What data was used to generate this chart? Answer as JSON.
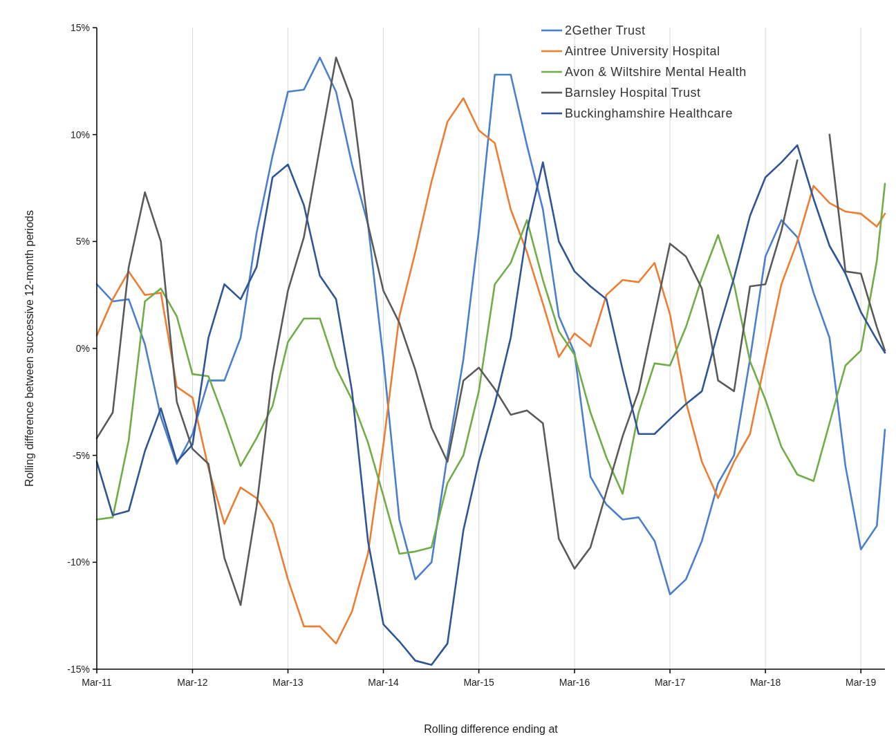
{
  "chart_data": {
    "type": "line",
    "xlabel": "Rolling difference ending at",
    "ylabel": "Rolling difference between successive 12-month periods",
    "x": [
      "2011-03",
      "2011-05",
      "2011-07",
      "2011-09",
      "2011-11",
      "2012-01",
      "2012-03",
      "2012-05",
      "2012-07",
      "2012-09",
      "2012-11",
      "2013-01",
      "2013-03",
      "2013-05",
      "2013-07",
      "2013-09",
      "2013-11",
      "2014-01",
      "2014-03",
      "2014-05",
      "2014-07",
      "2014-09",
      "2014-11",
      "2015-01",
      "2015-03",
      "2015-05",
      "2015-07",
      "2015-09",
      "2015-11",
      "2016-01",
      "2016-03",
      "2016-05",
      "2016-07",
      "2016-09",
      "2016-11",
      "2017-01",
      "2017-03",
      "2017-05",
      "2017-07",
      "2017-09",
      "2017-11",
      "2018-01",
      "2018-03",
      "2018-05",
      "2018-07",
      "2018-09",
      "2018-11",
      "2019-01",
      "2019-03",
      "2019-05",
      "2019-06"
    ],
    "series": [
      {
        "name": "2Gether  Trust",
        "color": "#4a7fcf",
        "values": [
          3.0,
          2.2,
          2.3,
          0.2,
          -3.2,
          -5.4,
          -4.0,
          -1.5,
          -1.5,
          0.5,
          5.4,
          9.0,
          12.0,
          12.1,
          13.6,
          12.0,
          8.6,
          5.8,
          -0.5,
          -8.0,
          -10.8,
          -10.0,
          -5.0,
          -0.5,
          5.5,
          12.8,
          12.8,
          9.5,
          6.5,
          1.5,
          -0.2,
          -6.0,
          -7.3,
          -8.0,
          -7.9,
          -9.0,
          -11.5,
          -10.8,
          -9.0,
          -6.3,
          -5.0,
          -0.5,
          4.3,
          6.0,
          5.2,
          2.6,
          0.5,
          -5.5,
          -9.4,
          -8.3,
          -3.8
        ]
      },
      {
        "name": "Aintree University Hospital",
        "color": "#ed7d31",
        "values": [
          0.6,
          2.3,
          3.6,
          2.5,
          2.6,
          -1.8,
          -2.3,
          -5.6,
          -8.2,
          -6.5,
          -7.0,
          -8.2,
          -10.8,
          -13.0,
          -13.0,
          -13.8,
          -12.3,
          -9.6,
          -4.5,
          1.5,
          4.5,
          7.8,
          10.6,
          11.7,
          10.2,
          9.6,
          6.5,
          4.5,
          2.1,
          -0.4,
          0.7,
          0.1,
          2.5,
          3.2,
          3.1,
          4.0,
          1.6,
          -2.5,
          -5.3,
          -7.0,
          -5.3,
          -4.0,
          -0.5,
          3.0,
          5.0,
          7.6,
          6.8,
          6.4,
          6.3,
          5.7,
          6.3
        ]
      },
      {
        "name": "Avon & Wiltshire Mental Health",
        "color": "#70ad47",
        "values": [
          -8.0,
          -7.9,
          -4.3,
          2.2,
          2.8,
          1.5,
          -1.2,
          -1.3,
          -3.3,
          -5.5,
          -4.2,
          -2.7,
          0.3,
          1.4,
          1.4,
          -0.9,
          -2.4,
          -4.4,
          -6.9,
          -9.6,
          -9.5,
          -9.3,
          -6.3,
          -5.0,
          -2.0,
          3.0,
          4.0,
          6.0,
          3.2,
          0.8,
          -0.3,
          -3.0,
          -5.1,
          -6.8,
          -3.0,
          -0.7,
          -0.8,
          1.0,
          3.3,
          5.3,
          3.0,
          -0.6,
          -2.4,
          -4.6,
          -5.9,
          -6.2,
          -3.5,
          -0.8,
          -0.1,
          4.1,
          7.7
        ]
      },
      {
        "name": "Barnsley Hospital  Trust",
        "color": "#5a5a5a",
        "values": [
          -4.2,
          -3.0,
          3.8,
          7.3,
          5.0,
          -2.5,
          -4.7,
          -5.4,
          -9.8,
          -12.0,
          -7.4,
          -1.2,
          2.7,
          5.2,
          9.4,
          13.6,
          11.6,
          5.8,
          2.7,
          1.2,
          -1.0,
          -3.7,
          -5.3,
          -1.5,
          -0.9,
          -1.9,
          -3.1,
          -2.9,
          -3.5,
          -8.9,
          -10.3,
          -9.3,
          -6.7,
          -4.1,
          -2.0,
          1.5,
          4.9,
          4.3,
          2.8,
          -1.5,
          -2.0,
          2.9,
          3.0,
          5.5,
          8.8,
          null,
          10.0,
          3.6,
          3.5,
          1.0,
          -0.1
        ]
      },
      {
        "name": "Buckinghamshire Healthcare",
        "color": "#2f5597",
        "values": [
          -5.3,
          -7.8,
          -7.6,
          -4.8,
          -2.8,
          -5.3,
          -4.5,
          0.5,
          3.0,
          2.3,
          3.8,
          8.0,
          8.6,
          6.7,
          3.4,
          2.3,
          -2.0,
          -9.0,
          -12.9,
          -13.7,
          -14.6,
          -14.8,
          -13.8,
          -8.5,
          -5.3,
          -2.6,
          0.5,
          5.5,
          8.7,
          5.0,
          3.6,
          2.9,
          2.3,
          -1.0,
          -4.0,
          -4.0,
          -3.3,
          -2.6,
          -2.0,
          0.8,
          3.3,
          6.2,
          8.0,
          8.7,
          9.5,
          7.0,
          4.8,
          3.5,
          1.7,
          0.4,
          -0.2
        ]
      }
    ],
    "xlim": [
      "2011-03",
      "2019-06"
    ],
    "xticks": [
      {
        "value": "2011-03",
        "label": "Mar-11"
      },
      {
        "value": "2012-03",
        "label": "Mar-12"
      },
      {
        "value": "2013-03",
        "label": "Mar-13"
      },
      {
        "value": "2014-03",
        "label": "Mar-14"
      },
      {
        "value": "2015-03",
        "label": "Mar-15"
      },
      {
        "value": "2016-03",
        "label": "Mar-16"
      },
      {
        "value": "2017-03",
        "label": "Mar-17"
      },
      {
        "value": "2018-03",
        "label": "Mar-18"
      },
      {
        "value": "2019-03",
        "label": "Mar-19"
      }
    ],
    "ylim": [
      -15,
      15
    ],
    "yticks": [
      {
        "value": -15,
        "label": "-15%"
      },
      {
        "value": -10,
        "label": "-10%"
      },
      {
        "value": -5,
        "label": "-5%"
      },
      {
        "value": 0,
        "label": "0%"
      },
      {
        "value": 5,
        "label": "5%"
      },
      {
        "value": 10,
        "label": "10%"
      },
      {
        "value": 15,
        "label": "15%"
      }
    ],
    "grid": "x",
    "legend": "top right",
    "line_style": "solid",
    "marker": "none"
  }
}
